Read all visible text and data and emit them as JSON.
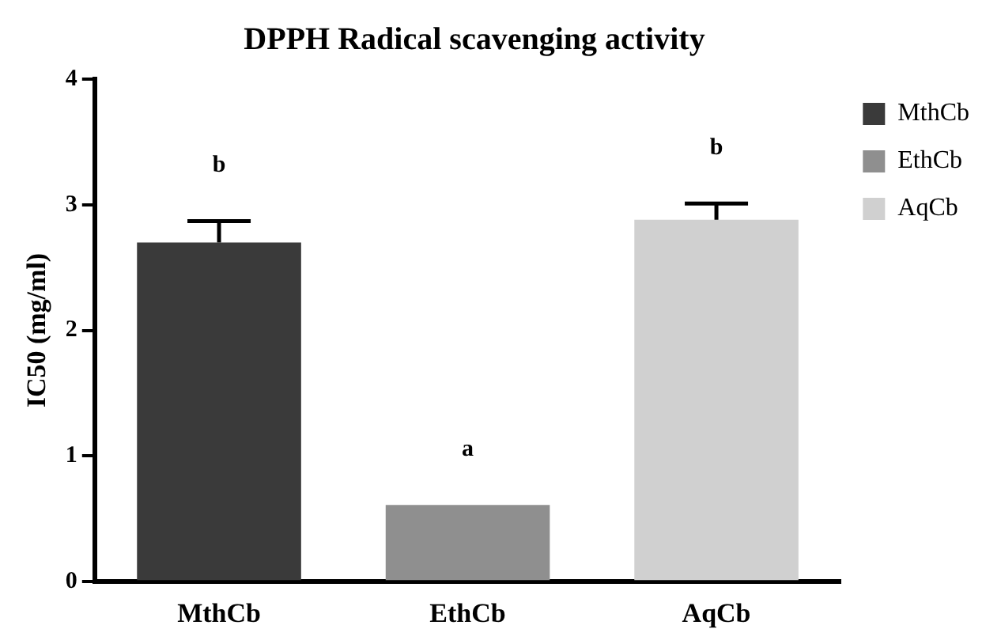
{
  "chart_data": {
    "type": "bar",
    "title": "DPPH Radical scavenging activity",
    "ylabel": "IC50 (mg/ml)",
    "categories": [
      "MthCb",
      "EthCb",
      "AqCb"
    ],
    "series": [
      {
        "name": "MthCb",
        "color": "#3a3a3a",
        "values": [
          2.7,
          null,
          null
        ],
        "errors": [
          [
            2.7,
            2.87
          ],
          null,
          null
        ]
      },
      {
        "name": "EthCb",
        "color": "#8f8f8f",
        "values": [
          null,
          0.61,
          null
        ]
      },
      {
        "name": "AqCb",
        "color": "#d0d0d0",
        "values": [
          null,
          null,
          2.88
        ],
        "errors": [
          null,
          null,
          [
            2.88,
            3.01
          ]
        ]
      }
    ],
    "ylim": [
      0,
      4
    ],
    "yticks": [
      0,
      1,
      2,
      3,
      4
    ],
    "grid": false,
    "legend": "top right",
    "annotations": [
      "b",
      "a",
      "b"
    ]
  }
}
